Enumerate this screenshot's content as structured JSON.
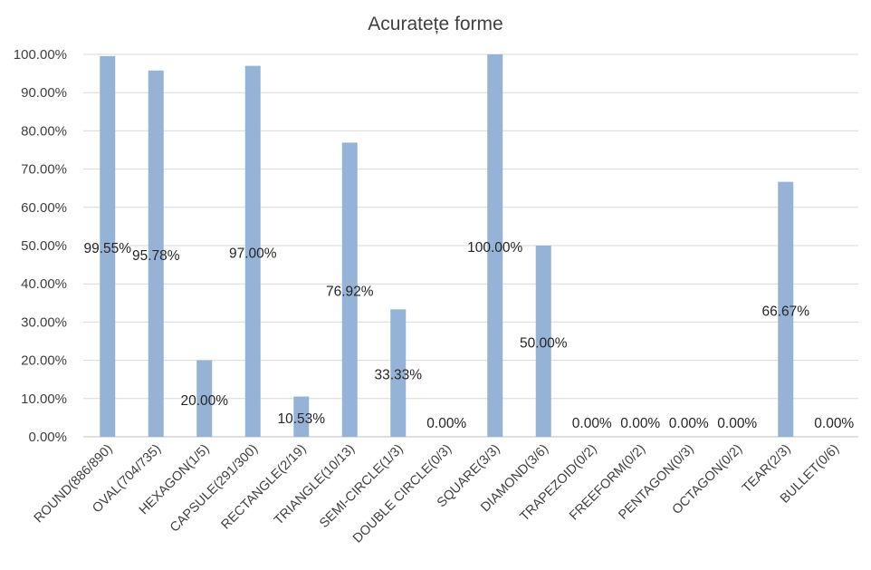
{
  "chart_data": {
    "type": "bar",
    "title": "Acuratețe forme",
    "xlabel": "",
    "ylabel": "",
    "ylim": [
      0,
      100
    ],
    "yticks": [
      "0.00%",
      "10.00%",
      "20.00%",
      "30.00%",
      "40.00%",
      "50.00%",
      "60.00%",
      "70.00%",
      "80.00%",
      "90.00%",
      "100.00%"
    ],
    "grid": true,
    "legend": "none",
    "bar_color": "#95b3d7",
    "categories": [
      "ROUND(886/890)",
      "OVAL(704/735)",
      "HEXAGON(1/5)",
      "CAPSULE(291/300)",
      "RECTANGLE(2/19)",
      "TRIANGLE(10/13)",
      "SEMI-CIRCLE(1/3)",
      "DOUBLE CIRCLE(0/3)",
      "SQUARE(3/3)",
      "DIAMOND(3/6)",
      "TRAPEZOID(0/2)",
      "FREEFORM(0/2)",
      "PENTAGON(0/3)",
      "OCTAGON(0/2)",
      "TEAR(2/3)",
      "BULLET(0/6)"
    ],
    "values": [
      99.55,
      95.78,
      20.0,
      97.0,
      10.53,
      76.92,
      33.33,
      0.0,
      100.0,
      50.0,
      0.0,
      0.0,
      0.0,
      0.0,
      66.67,
      0.0
    ],
    "data_labels": [
      "99.55%",
      "95.78%",
      "20.00%",
      "97.00%",
      "10.53%",
      "76.92%",
      "33.33%",
      "0.00%",
      "100.00%",
      "50.00%",
      "0.00%",
      "0.00%",
      "0.00%",
      "0.00%",
      "66.67%",
      "0.00%"
    ]
  }
}
